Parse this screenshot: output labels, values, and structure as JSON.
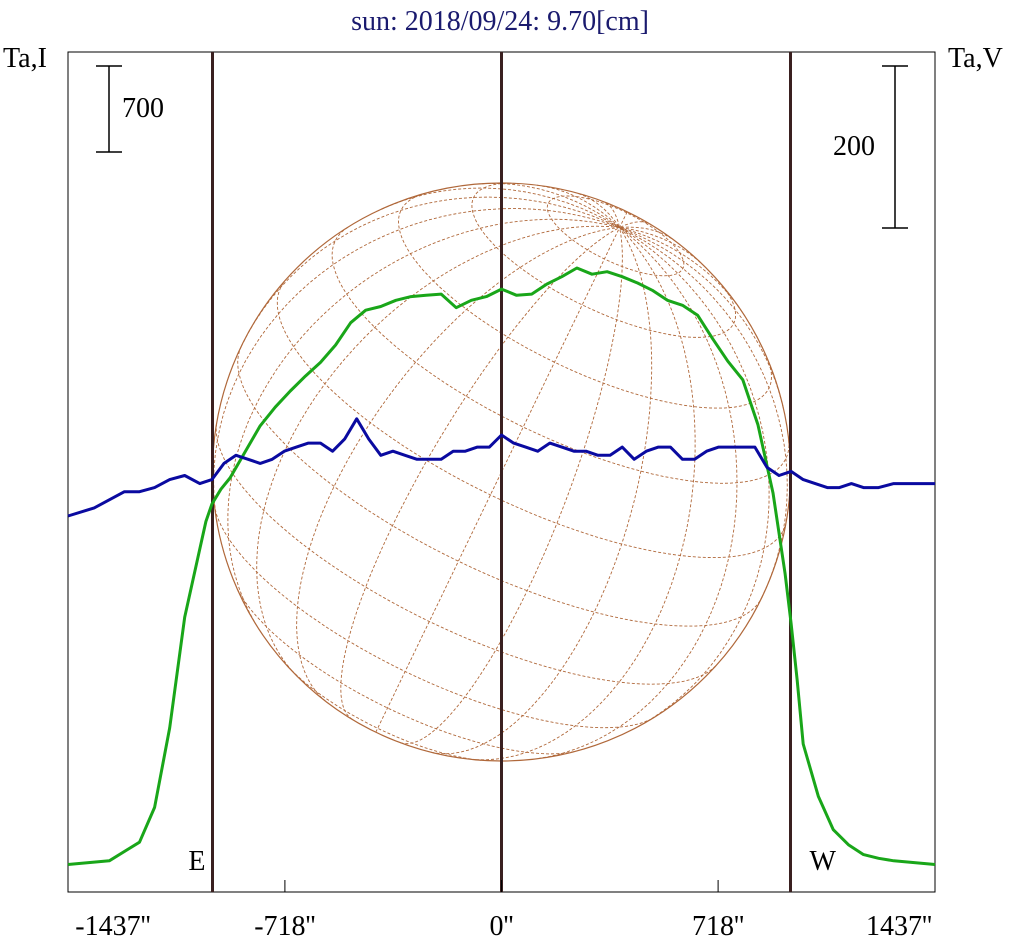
{
  "chart_data": {
    "type": "line",
    "title": "sun: 2018/09/24: 9.70[cm]",
    "left_axis_label": "Ta,I",
    "right_axis_label": "Ta,V",
    "left_scale_bar_label": "700",
    "right_scale_bar_label": "200",
    "xlim": [
      -1437,
      1437
    ],
    "x_ticks": [
      -1437,
      -718,
      0,
      718,
      1437
    ],
    "x_tick_labels": [
      "-1437''",
      "-718''",
      "0''",
      "718''",
      "1437''"
    ],
    "limb_markers": [
      {
        "label": "E",
        "x": -958
      },
      {
        "label": "W",
        "x": 958
      }
    ],
    "center_marker_x": 0,
    "disk_radius": 958,
    "grid": false,
    "colors": {
      "title": "#1a1a6e",
      "stokes_I": "#19a619",
      "stokes_V": "#0a0aa0",
      "limb_lines": "#3a2020",
      "disk": "#b0683a"
    },
    "series": [
      {
        "name": "",
        "axis": "left",
        "x": [
          -1437,
          -1300,
          -1200,
          -1150,
          -1100,
          -1050,
          -1000,
          -980,
          -960,
          -930,
          -900,
          -850,
          -800,
          -750,
          -700,
          -650,
          -600,
          -550,
          -500,
          -450,
          -400,
          -350,
          -300,
          -250,
          -200,
          -150,
          -100,
          -50,
          0,
          50,
          100,
          150,
          200,
          250,
          300,
          350,
          400,
          450,
          500,
          550,
          600,
          650,
          700,
          750,
          800,
          850,
          900,
          940,
          960,
          980,
          1000,
          1050,
          1100,
          1150,
          1200,
          1250,
          1300,
          1350,
          1437
        ],
        "values": [
          60,
          90,
          240,
          520,
          1160,
          2050,
          2600,
          2820,
          2960,
          3080,
          3170,
          3380,
          3590,
          3740,
          3870,
          3990,
          4100,
          4240,
          4420,
          4520,
          4550,
          4600,
          4630,
          4640,
          4650,
          4540,
          4600,
          4630,
          4690,
          4640,
          4650,
          4730,
          4790,
          4860,
          4810,
          4830,
          4790,
          4740,
          4680,
          4600,
          4560,
          4480,
          4290,
          4110,
          3960,
          3600,
          3050,
          2400,
          2000,
          1550,
          1030,
          610,
          340,
          220,
          140,
          110,
          90,
          80,
          60
        ]
      },
      {
        "name": "",
        "axis": "right",
        "x": [
          -1437,
          -1350,
          -1300,
          -1250,
          -1200,
          -1150,
          -1100,
          -1050,
          -1000,
          -960,
          -920,
          -880,
          -840,
          -800,
          -760,
          -720,
          -680,
          -640,
          -600,
          -560,
          -520,
          -480,
          -440,
          -400,
          -360,
          -320,
          -280,
          -240,
          -200,
          -160,
          -120,
          -80,
          -40,
          0,
          40,
          80,
          120,
          160,
          200,
          240,
          280,
          320,
          360,
          400,
          440,
          480,
          520,
          560,
          600,
          640,
          680,
          720,
          760,
          800,
          840,
          880,
          920,
          960,
          1000,
          1040,
          1080,
          1120,
          1160,
          1200,
          1250,
          1300,
          1350,
          1400,
          1437
        ],
        "values": [
          0,
          10,
          20,
          30,
          30,
          35,
          45,
          50,
          40,
          45,
          65,
          75,
          70,
          65,
          70,
          80,
          85,
          90,
          90,
          80,
          95,
          120,
          95,
          75,
          80,
          75,
          70,
          70,
          70,
          80,
          80,
          85,
          85,
          100,
          90,
          85,
          80,
          90,
          85,
          80,
          80,
          75,
          75,
          85,
          70,
          80,
          85,
          85,
          70,
          70,
          80,
          85,
          85,
          85,
          85,
          60,
          50,
          55,
          45,
          40,
          35,
          35,
          40,
          35,
          35,
          40,
          40,
          40,
          40
        ]
      }
    ]
  }
}
